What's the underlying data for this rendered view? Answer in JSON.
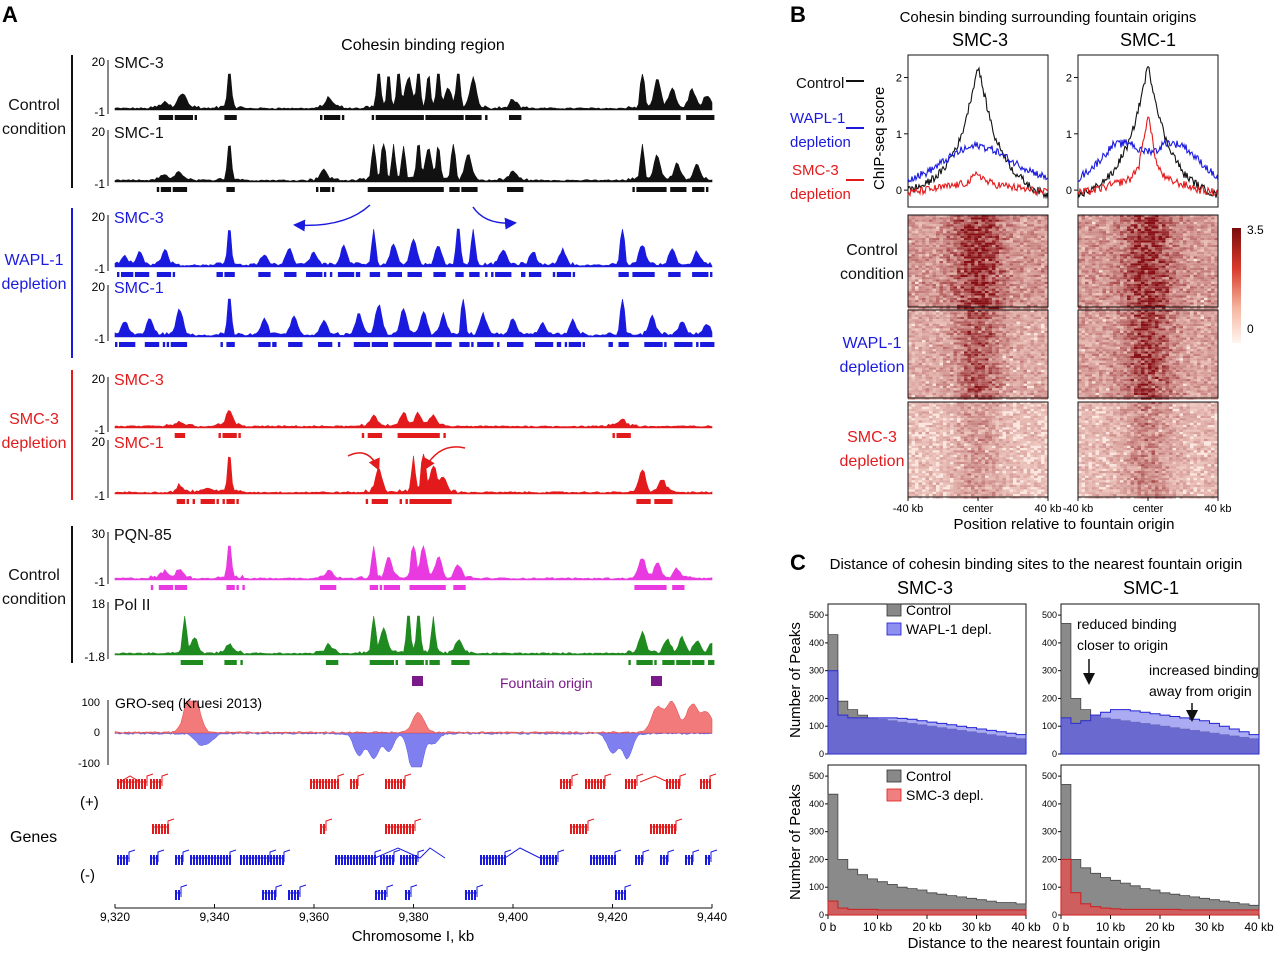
{
  "panels": {
    "A": "A",
    "B": "B",
    "C": "C"
  },
  "colors": {
    "black": "#111111",
    "blue": "#1a1adf",
    "red": "#e31a1c",
    "magenta": "#e83ae0",
    "green": "#1f8a1f",
    "purple": "#7a1a8a",
    "grey": "#888888",
    "lightblue": "#8f8ff0",
    "salmon": "#f08080"
  },
  "panelA": {
    "title": "Cohesin binding region",
    "groups": [
      {
        "line1": "Control",
        "line2": "condition",
        "color": "black"
      },
      {
        "line1": "WAPL-1",
        "line2": "depletion",
        "color": "blue"
      },
      {
        "line1": "SMC-3",
        "line2": "depletion",
        "color": "red"
      },
      {
        "line1": "Control",
        "line2": "condition",
        "color": "black"
      }
    ],
    "tracks": [
      {
        "name": "SMC-3",
        "ymax": "20",
        "ymin": "-1",
        "color": "black"
      },
      {
        "name": "SMC-1",
        "ymax": "20",
        "ymin": "-1",
        "color": "black"
      },
      {
        "name": "SMC-3",
        "ymax": "20",
        "ymin": "-1",
        "color": "blue"
      },
      {
        "name": "SMC-1",
        "ymax": "20",
        "ymin": "-1",
        "color": "blue"
      },
      {
        "name": "SMC-3",
        "ymax": "20",
        "ymin": "-1",
        "color": "red"
      },
      {
        "name": "SMC-1",
        "ymax": "20",
        "ymin": "-1",
        "color": "red"
      },
      {
        "name": "PQN-85",
        "ymax": "30",
        "ymin": "-1",
        "color": "magenta"
      },
      {
        "name": "Pol II",
        "ymax": "18",
        "ymin": "-1.8",
        "color": "green"
      }
    ],
    "fountain_label": "Fountain origin",
    "groseq": {
      "name": "GRO-seq (Kruesi 2013)",
      "ymax": "100",
      "ymid": "0",
      "ymin": "-100"
    },
    "genes_label": "Genes",
    "plus_label": "(+)",
    "minus_label": "(-)",
    "xticks": [
      "9,320",
      "9,340",
      "9,360",
      "9,380",
      "9,400",
      "9,420",
      "9,440"
    ],
    "xlabel": "Chromosome I, kb"
  },
  "panelB": {
    "title": "Cohesin binding surrounding fountain origins",
    "col1": "SMC-3",
    "col2": "SMC-1",
    "legend": [
      {
        "line1": "Control",
        "line2": "",
        "color": "black"
      },
      {
        "line1": "WAPL-1",
        "line2": "depletion",
        "color": "blue"
      },
      {
        "line1": "SMC-3",
        "line2": "depletion",
        "color": "red"
      }
    ],
    "ylabel": "ChIP-seq score",
    "yticks": [
      "0",
      "1",
      "2"
    ],
    "rows": [
      {
        "line1": "Control",
        "line2": "condition",
        "color": "black"
      },
      {
        "line1": "WAPL-1",
        "line2": "depletion",
        "color": "blue"
      },
      {
        "line1": "SMC-3",
        "line2": "depletion",
        "color": "red"
      }
    ],
    "colorbar": {
      "max": "3.5",
      "min": "0"
    },
    "xticks": [
      "-40 kb",
      "center",
      "40 kb"
    ],
    "xlabel": "Position relative to fountain origin"
  },
  "panelC": {
    "title": "Distance of cohesin binding sites to the nearest fountain origin",
    "col1": "SMC-3",
    "col2": "SMC-1",
    "ylabel": "Number of Peaks",
    "yticks": [
      "0",
      "100",
      "200",
      "300",
      "400",
      "500"
    ],
    "xticks": [
      "0 b",
      "10 kb",
      "20 kb",
      "30 kb",
      "40 kb"
    ],
    "xlabel": "Distance to the nearest fountain origin",
    "legend_top": [
      "Control",
      "WAPL-1 depl."
    ],
    "legend_bottom": [
      "Control",
      "SMC-3 depl."
    ],
    "annot1": [
      "reduced binding",
      "closer to origin"
    ],
    "annot2": [
      "increased binding",
      "away from origin"
    ]
  },
  "chart_data": [
    {
      "type": "line",
      "title": "Cohesin binding surrounding fountain origins - SMC-3",
      "xlabel": "Position relative to fountain origin",
      "ylabel": "ChIP-seq score",
      "x": [
        -40,
        -30,
        -20,
        -10,
        -5,
        0,
        5,
        10,
        20,
        30,
        40
      ],
      "ylim": [
        -0.3,
        2.4
      ],
      "series": [
        {
          "name": "Control",
          "values": [
            0.0,
            0.1,
            0.35,
            0.9,
            1.5,
            2.2,
            1.5,
            0.9,
            0.35,
            0.05,
            -0.1
          ]
        },
        {
          "name": "WAPL-1 depletion",
          "values": [
            0.2,
            0.3,
            0.5,
            0.7,
            0.75,
            0.8,
            0.75,
            0.7,
            0.5,
            0.35,
            0.2
          ]
        },
        {
          "name": "SMC-3 depletion",
          "values": [
            -0.05,
            0.0,
            0.05,
            0.1,
            0.15,
            0.3,
            0.15,
            0.1,
            0.05,
            0.0,
            -0.05
          ]
        }
      ]
    },
    {
      "type": "line",
      "title": "Cohesin binding surrounding fountain origins - SMC-1",
      "xlabel": "Position relative to fountain origin",
      "ylabel": "ChIP-seq score",
      "x": [
        -40,
        -30,
        -20,
        -10,
        -5,
        0,
        5,
        10,
        20,
        30,
        40
      ],
      "ylim": [
        -0.3,
        2.4
      ],
      "series": [
        {
          "name": "Control",
          "values": [
            -0.1,
            0.05,
            0.3,
            0.9,
            1.5,
            2.2,
            1.5,
            0.9,
            0.3,
            0.05,
            -0.1
          ]
        },
        {
          "name": "WAPL-1 depletion",
          "values": [
            0.2,
            0.45,
            0.8,
            0.85,
            0.7,
            0.7,
            0.7,
            0.85,
            0.8,
            0.5,
            0.2
          ]
        },
        {
          "name": "SMC-3 depletion",
          "values": [
            -0.05,
            0.0,
            0.1,
            0.2,
            0.45,
            1.35,
            0.45,
            0.2,
            0.1,
            0.0,
            -0.05
          ]
        }
      ]
    },
    {
      "type": "bar",
      "title": "Distance of cohesin binding sites - SMC-3 (Control vs WAPL-1 depl.)",
      "xlabel": "Distance to the nearest fountain origin",
      "ylabel": "Number of Peaks",
      "categories": [
        "0",
        "2",
        "4",
        "6",
        "8",
        "10",
        "12",
        "14",
        "16",
        "18",
        "20",
        "22",
        "24",
        "26",
        "28",
        "30",
        "32",
        "34",
        "36",
        "38"
      ],
      "ylim": [
        0,
        540
      ],
      "series": [
        {
          "name": "Control",
          "values": [
            430,
            190,
            160,
            140,
            130,
            125,
            120,
            115,
            110,
            105,
            100,
            95,
            90,
            85,
            80,
            75,
            70,
            65,
            60,
            55
          ]
        },
        {
          "name": "WAPL-1 depl.",
          "values": [
            300,
            140,
            130,
            130,
            130,
            130,
            130,
            128,
            125,
            120,
            115,
            110,
            105,
            100,
            95,
            90,
            85,
            80,
            75,
            70
          ]
        }
      ]
    },
    {
      "type": "bar",
      "title": "Distance of cohesin binding sites - SMC-1 (Control vs WAPL-1 depl.)",
      "xlabel": "Distance to the nearest fountain origin",
      "ylabel": "Number of Peaks",
      "categories": [
        "0",
        "2",
        "4",
        "6",
        "8",
        "10",
        "12",
        "14",
        "16",
        "18",
        "20",
        "22",
        "24",
        "26",
        "28",
        "30",
        "32",
        "34",
        "36",
        "38"
      ],
      "ylim": [
        0,
        540
      ],
      "series": [
        {
          "name": "Control",
          "values": [
            470,
            200,
            160,
            140,
            130,
            125,
            120,
            115,
            110,
            105,
            100,
            95,
            90,
            85,
            80,
            75,
            70,
            65,
            60,
            55
          ]
        },
        {
          "name": "WAPL-1 depl.",
          "values": [
            130,
            110,
            120,
            140,
            150,
            160,
            160,
            155,
            150,
            145,
            140,
            135,
            130,
            125,
            120,
            110,
            100,
            90,
            80,
            70
          ]
        }
      ]
    },
    {
      "type": "bar",
      "title": "Distance of cohesin binding sites - SMC-3 (Control vs SMC-3 depl.)",
      "xlabel": "Distance to the nearest fountain origin",
      "ylabel": "Number of Peaks",
      "categories": [
        "0",
        "2",
        "4",
        "6",
        "8",
        "10",
        "12",
        "14",
        "16",
        "18",
        "20",
        "22",
        "24",
        "26",
        "28",
        "30",
        "32",
        "34",
        "36",
        "38"
      ],
      "ylim": [
        0,
        540
      ],
      "series": [
        {
          "name": "Control",
          "values": [
            435,
            200,
            165,
            145,
            130,
            120,
            110,
            100,
            95,
            90,
            80,
            75,
            70,
            65,
            60,
            55,
            50,
            45,
            45,
            40
          ]
        },
        {
          "name": "SMC-3 depl.",
          "values": [
            50,
            25,
            20,
            20,
            20,
            18,
            18,
            18,
            18,
            18,
            18,
            18,
            18,
            18,
            18,
            18,
            18,
            18,
            18,
            18
          ]
        }
      ]
    },
    {
      "type": "bar",
      "title": "Distance of cohesin binding sites - SMC-1 (Control vs SMC-3 depl.)",
      "xlabel": "Distance to the nearest fountain origin",
      "ylabel": "Number of Peaks",
      "categories": [
        "0",
        "2",
        "4",
        "6",
        "8",
        "10",
        "12",
        "14",
        "16",
        "18",
        "20",
        "22",
        "24",
        "26",
        "28",
        "30",
        "32",
        "34",
        "36",
        "38"
      ],
      "ylim": [
        0,
        540
      ],
      "series": [
        {
          "name": "Control",
          "values": [
            470,
            200,
            170,
            150,
            135,
            125,
            115,
            105,
            95,
            90,
            80,
            75,
            70,
            65,
            60,
            55,
            50,
            45,
            40,
            35
          ]
        },
        {
          "name": "SMC-3 depl.",
          "values": [
            200,
            80,
            40,
            30,
            25,
            22,
            20,
            20,
            20,
            20,
            20,
            20,
            18,
            18,
            18,
            18,
            18,
            18,
            18,
            18
          ]
        }
      ]
    }
  ]
}
